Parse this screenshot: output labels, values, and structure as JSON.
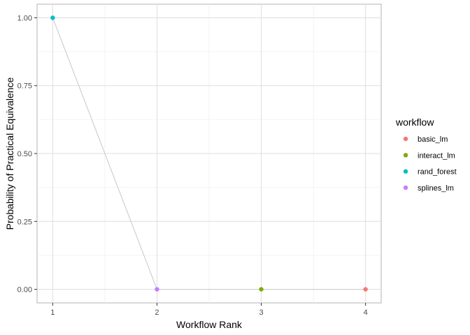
{
  "chart_data": {
    "type": "scatter",
    "title": "",
    "xlabel": "Workflow Rank",
    "ylabel": "Probability of Practical Equivalence",
    "xlim": [
      0.85,
      4.15
    ],
    "ylim": [
      -0.05,
      1.05
    ],
    "x_ticks": [
      1,
      2,
      3,
      4
    ],
    "x_tick_labels": [
      "1",
      "2",
      "3",
      "4"
    ],
    "y_ticks": [
      0,
      0.25,
      0.5,
      0.75,
      1
    ],
    "y_tick_labels": [
      "0.00",
      "0.25",
      "0.50",
      "0.75",
      "1.00"
    ],
    "grid": true,
    "line_color": "#cccccc",
    "legend": {
      "title": "workflow",
      "placement": "right",
      "entries": [
        {
          "name": "basic_lm",
          "color": "#F8766D"
        },
        {
          "name": "interact_lm",
          "color": "#7CAE00"
        },
        {
          "name": "rand_forest",
          "color": "#00BFC4"
        },
        {
          "name": "splines_lm",
          "color": "#C77CFF"
        }
      ]
    },
    "points": [
      {
        "workflow": "rand_forest",
        "rank": 1,
        "probability": 1.0
      },
      {
        "workflow": "splines_lm",
        "rank": 2,
        "probability": 0.0
      },
      {
        "workflow": "interact_lm",
        "rank": 3,
        "probability": 0.0
      },
      {
        "workflow": "basic_lm",
        "rank": 4,
        "probability": 0.0
      }
    ]
  }
}
